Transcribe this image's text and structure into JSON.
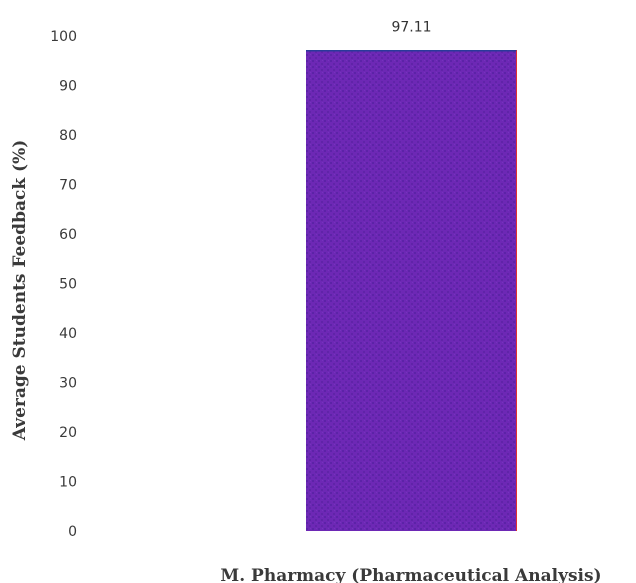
{
  "chart_data": {
    "type": "bar",
    "categories": [
      "M. Pharmacy (Pharmaceutical Analysis)"
    ],
    "values": [
      97.11
    ],
    "data_labels": [
      "97.11"
    ],
    "ylabel": "Average Students Feedback (%)",
    "xlabel": "",
    "ylim": [
      0,
      100
    ],
    "yticks": [
      0,
      10,
      20,
      30,
      40,
      50,
      60,
      70,
      80,
      90,
      100
    ],
    "ytick_labels": [
      "0",
      "10",
      "20",
      "30",
      "40",
      "50",
      "60",
      "70",
      "80",
      "90",
      "100"
    ],
    "grid": false,
    "legend": "none",
    "colors": {
      "bar": "#6d28b5",
      "bar_speckle": "#4f1e9a",
      "bar_edge_right": "#e03030",
      "bar_edge_top": "#2a3a9a"
    }
  }
}
